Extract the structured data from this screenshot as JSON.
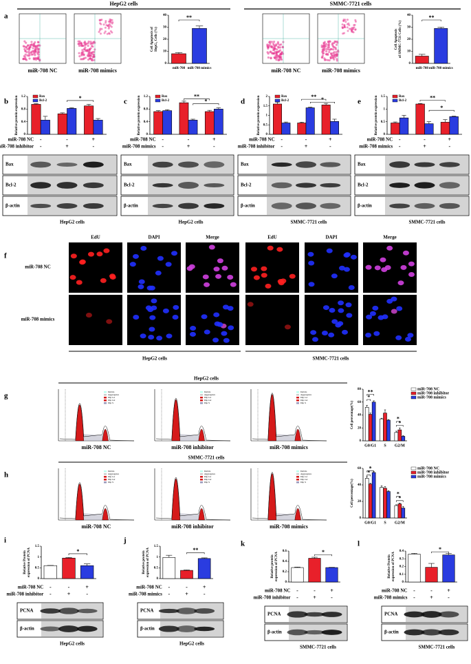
{
  "header": {
    "left": "HepG2 cells",
    "right": "SMMC-7721 cells"
  },
  "panel_labels": [
    "a",
    "b",
    "c",
    "d",
    "e",
    "f",
    "g",
    "h",
    "i",
    "j",
    "k",
    "l"
  ],
  "flow_labels": [
    "miR-708 NC",
    "miR-708 mimics",
    "miR-708 NC",
    "miR-708 mimics"
  ],
  "chart_data": [
    {
      "type": "bar",
      "ylabel": [
        "Cell Apoptosis of",
        "HepG₂ Cells (%)"
      ],
      "categories": [
        "miR-708",
        "miR-708 mimics"
      ],
      "values": [
        8,
        29
      ],
      "errors": [
        1,
        2
      ],
      "colors": [
        "#e8202a",
        "#2a3ce0"
      ],
      "ylim": [
        0,
        40
      ],
      "yticks": [
        0,
        10,
        20,
        30,
        40
      ],
      "significance": [
        "**"
      ]
    },
    {
      "type": "bar",
      "ylabel": [
        "Cell Apoptosis",
        "of SMMC-7721 Cells (%)"
      ],
      "categories": [
        "miR-708",
        "miR-708 mimics"
      ],
      "values": [
        6,
        29
      ],
      "errors": [
        1.5,
        1
      ],
      "colors": [
        "#e8202a",
        "#2a3ce0"
      ],
      "ylim": [
        0,
        40
      ],
      "yticks": [
        0,
        10,
        20,
        30,
        40
      ],
      "significance": [
        "**"
      ]
    },
    {
      "type": "bar",
      "ylabel": [
        "Relative protein expression"
      ],
      "series": [
        {
          "name": "Bax",
          "color": "#e8202a",
          "values": [
            0.95,
            0.65,
            0.9
          ],
          "errors": [
            0.02,
            0.03,
            0.05
          ]
        },
        {
          "name": "Bcl-2",
          "color": "#2a3ce0",
          "values": [
            0.45,
            0.82,
            0.45
          ],
          "errors": [
            0.12,
            0.02,
            0.05
          ]
        }
      ],
      "ylim": [
        0,
        1.2
      ],
      "yticks": [
        0,
        0.4,
        0.8,
        1.2
      ],
      "significance": [
        "*"
      ]
    },
    {
      "type": "bar",
      "ylabel": [
        "Relative protein expression"
      ],
      "series": [
        {
          "name": "Bax",
          "color": "#e8202a",
          "values": [
            0.72,
            1.0,
            0.72
          ],
          "errors": [
            0.03,
            0.05,
            0.04
          ]
        },
        {
          "name": "Bcl-2",
          "color": "#2a3ce0",
          "values": [
            0.75,
            0.45,
            0.8
          ],
          "errors": [
            0.03,
            0.03,
            0.04
          ]
        }
      ],
      "ylim": [
        0,
        1.2
      ],
      "yticks": [
        0,
        0.4,
        0.8,
        1.2
      ],
      "significance": [
        "**",
        "*"
      ]
    },
    {
      "type": "bar",
      "ylabel": [
        "Relative protein expression"
      ],
      "series": [
        {
          "name": "Bax",
          "color": "#e8202a",
          "values": [
            1.6,
            0.6,
            1.55
          ],
          "errors": [
            0.1,
            0.04,
            0.08
          ]
        },
        {
          "name": "Bcl-2",
          "color": "#2a3ce0",
          "values": [
            0.6,
            1.4,
            0.68
          ],
          "errors": [
            0.05,
            0.03,
            0.12
          ]
        }
      ],
      "ylim": [
        0,
        2
      ],
      "yticks": [
        0,
        0.5,
        1,
        1.5,
        2
      ],
      "significance": [
        "**",
        "*"
      ]
    },
    {
      "type": "bar",
      "ylabel": [
        "Relative protein expression"
      ],
      "series": [
        {
          "name": "Bax",
          "color": "#e8202a",
          "values": [
            0.45,
            1.2,
            0.48
          ],
          "errors": [
            0.04,
            0.02,
            0.1
          ]
        },
        {
          "name": "Bcl-2",
          "color": "#2a3ce0",
          "values": [
            0.65,
            0.42,
            0.7
          ],
          "errors": [
            0.1,
            0.08,
            0.02
          ]
        }
      ],
      "ylim": [
        0,
        1.5
      ],
      "yticks": [
        0,
        0.5,
        1,
        1.5
      ],
      "significance": [
        "**",
        "*"
      ]
    },
    {
      "type": "bar",
      "ylabel": [
        "Cell percentage(%)"
      ],
      "categories": [
        "G0/G1",
        "S",
        "G2/M"
      ],
      "series": [
        {
          "name": "miR-708 NC",
          "color": "#ffffff",
          "values": [
            52,
            34,
            13
          ],
          "errors": [
            3,
            1,
            2
          ]
        },
        {
          "name": "miR-708 inhibitor",
          "color": "#e8202a",
          "values": [
            41,
            43,
            17
          ],
          "errors": [
            2,
            5,
            3
          ]
        },
        {
          "name": "miR-708 mimics",
          "color": "#2a3ce0",
          "values": [
            60,
            32,
            7
          ],
          "errors": [
            2,
            1,
            1
          ]
        }
      ],
      "ylim": [
        0,
        80
      ],
      "yticks": [
        0,
        20,
        40,
        60,
        80
      ],
      "significance": [
        "**",
        "*",
        "*",
        "*"
      ]
    },
    {
      "type": "bar",
      "ylabel": [
        "Cell percentage(%)"
      ],
      "categories": [
        "G0/G1",
        "S",
        "G2/M"
      ],
      "series": [
        {
          "name": "miR-708 NC",
          "color": "#ffffff",
          "values": [
            48,
            37,
            15
          ],
          "errors": [
            2,
            2,
            1
          ]
        },
        {
          "name": "miR-708 inhibitor",
          "color": "#e8202a",
          "values": [
            41,
            36,
            17
          ],
          "errors": [
            1,
            2,
            1
          ]
        },
        {
          "name": "miR-708 mimics",
          "color": "#2a3ce0",
          "values": [
            55,
            32,
            12
          ],
          "errors": [
            1,
            1,
            2
          ]
        }
      ],
      "ylim": [
        0,
        60
      ],
      "yticks": [
        0,
        20,
        40,
        60
      ],
      "significance": [
        "*",
        "*",
        "*",
        "*"
      ]
    },
    {
      "type": "bar",
      "ylabel": [
        "Relative Protein",
        "expression of PCNA"
      ],
      "values": [
        0.6,
        0.95,
        0.6
      ],
      "errors": [
        0.01,
        0.03,
        0.08
      ],
      "colors": [
        "#ffffff",
        "#e8202a",
        "#2a3ce0"
      ],
      "ylim": [
        0,
        1.5
      ],
      "yticks": [
        0,
        0.5,
        1,
        1.5
      ],
      "significance": [
        "*"
      ]
    },
    {
      "type": "bar",
      "ylabel": [
        "Relative protein",
        "expression of PCNA"
      ],
      "values": [
        0.98,
        0.38,
        0.93
      ],
      "errors": [
        0.1,
        0.02,
        0.03
      ],
      "colors": [
        "#ffffff",
        "#e8202a",
        "#2a3ce0"
      ],
      "ylim": [
        0,
        1.5
      ],
      "yticks": [
        0,
        0.5,
        1,
        1.5
      ],
      "significance": [
        "**"
      ]
    },
    {
      "type": "bar",
      "ylabel": [
        "Relative protein",
        "expression of PCNA"
      ],
      "values": [
        0.28,
        0.46,
        0.28
      ],
      "errors": [
        0.01,
        0.02,
        0.005
      ],
      "colors": [
        "#ffffff",
        "#e8202a",
        "#2a3ce0"
      ],
      "ylim": [
        0,
        0.6
      ],
      "yticks": [
        0,
        0.2,
        0.4,
        0.6
      ],
      "significance": [
        "*"
      ]
    },
    {
      "type": "bar",
      "ylabel": [
        "Relative Protein",
        "expression of PCNA"
      ],
      "values": [
        0.36,
        0.19,
        0.35
      ],
      "errors": [
        0.01,
        0.05,
        0.02
      ],
      "colors": [
        "#ffffff",
        "#e8202a",
        "#2a3ce0"
      ],
      "ylim": [
        0,
        0.4
      ],
      "yticks": [
        0,
        0.1,
        0.2,
        0.3,
        0.4
      ],
      "significance": [
        "*"
      ]
    }
  ],
  "blots": [
    {
      "conditions": [
        {
          "label": "miR-708 NC",
          "signs": [
            "-",
            "-",
            "+"
          ]
        },
        {
          "label": "miR-708 inhibitor",
          "signs": [
            "-",
            "+",
            "-"
          ]
        }
      ],
      "bands": [
        "Bax",
        "Bcl-2",
        "β-actin"
      ],
      "caption": "HepG2 cells"
    },
    {
      "conditions": [
        {
          "label": "miR-708 NC",
          "signs": [
            "-",
            "-",
            "+"
          ]
        },
        {
          "label": "miR-708 mimics",
          "signs": [
            "-",
            "+",
            "-"
          ]
        }
      ],
      "bands": [
        "Bax",
        "Bcl-2",
        "β-actin"
      ],
      "caption": "HepG2 cells"
    },
    {
      "conditions": [
        {
          "label": "miR-708 NC",
          "signs": [
            "-",
            "-",
            "+"
          ]
        },
        {
          "label": "miR-708 inhibitor",
          "signs": [
            "-",
            "+",
            "-"
          ]
        }
      ],
      "bands": [
        "Bax",
        "Bcl-2",
        "β-actin"
      ],
      "caption": "SMMC-7721 cells"
    },
    {
      "conditions": [
        {
          "label": "miR-708 NC",
          "signs": [
            "-",
            "-",
            "+"
          ]
        },
        {
          "label": "miR-708 mimics",
          "signs": [
            "-",
            "+",
            "-"
          ]
        }
      ],
      "bands": [
        "Bax",
        "Bcl-2",
        "β-actin"
      ],
      "caption": "SMMC-7721 cells"
    },
    {
      "conditions": [
        {
          "label": "miR-708 NC",
          "signs": [
            "-",
            "-",
            "+"
          ]
        },
        {
          "label": "miR-708 inhibitor",
          "signs": [
            "-",
            "+",
            "-"
          ]
        }
      ],
      "bands": [
        "PCNA",
        "β-actin"
      ],
      "caption": "HepG2 cells"
    },
    {
      "conditions": [
        {
          "label": "miR-708 NC",
          "signs": [
            "-",
            "-",
            "+"
          ]
        },
        {
          "label": "miR-708 mimics",
          "signs": [
            "-",
            "+",
            "-"
          ]
        }
      ],
      "bands": [
        "PCNA",
        "β-actin"
      ],
      "caption": "HepG2 cells"
    },
    {
      "conditions": [
        {
          "label": "miR-708 NC",
          "signs": [
            "-",
            "-",
            "+"
          ]
        },
        {
          "label": "miR-708 inhibitor",
          "signs": [
            "-",
            "+",
            "-"
          ]
        }
      ],
      "bands": [
        "PCNA",
        "β-actin"
      ],
      "caption": "SMMC-7721 cells"
    },
    {
      "conditions": [
        {
          "label": "miR-708 NC",
          "signs": [
            "-",
            "-",
            "+"
          ]
        },
        {
          "label": "miR-708 mimics",
          "signs": [
            "-",
            "+",
            "-"
          ]
        }
      ],
      "bands": [
        "PCNA",
        "β-actin"
      ],
      "caption": "SMMC-7721 cells"
    }
  ],
  "edu": {
    "headers": [
      "EdU",
      "DAPI",
      "Merge",
      "EdU",
      "DAPI",
      "Merge"
    ],
    "rows": [
      "miR-708 NC",
      "miR-708 mimics"
    ],
    "captions": [
      "HepG2 cells",
      "SMMC-7721 cells"
    ]
  },
  "cycle": {
    "titles": [
      "HepG2 cells",
      "SMMC-7721 cells"
    ],
    "labels": [
      "miR-708 NC",
      "miR-708 inhibitor",
      "miR-708 mimics"
    ],
    "legend": [
      "Debris",
      "Aggregates",
      "Dip G1",
      "Dip G2",
      "Dip S"
    ]
  }
}
